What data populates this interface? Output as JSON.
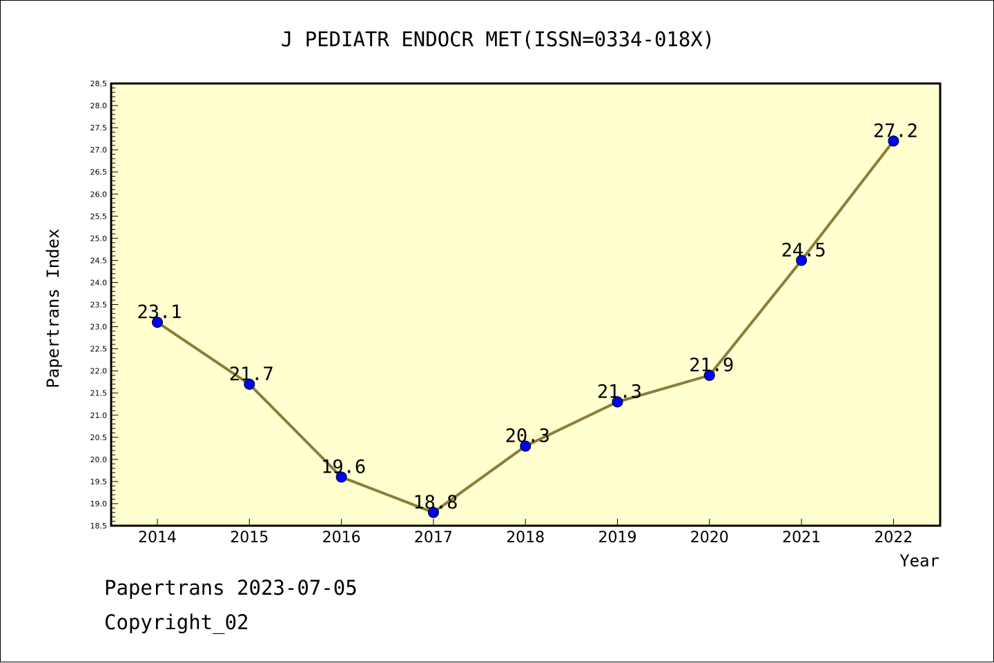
{
  "chart_data": {
    "type": "line",
    "title": "J PEDIATR ENDOCR MET(ISSN=0334-018X)",
    "xlabel": "Year",
    "ylabel": "Papertrans Index",
    "categories": [
      "2014",
      "2015",
      "2016",
      "2017",
      "2018",
      "2019",
      "2020",
      "2021",
      "2022"
    ],
    "values": [
      23.1,
      21.7,
      19.6,
      18.8,
      20.3,
      21.3,
      21.9,
      24.5,
      27.2
    ],
    "data_labels": [
      "23.1",
      "21.7",
      "19.6",
      "18.8",
      "20.3",
      "21.3",
      "21.9",
      "24.5",
      "27.2"
    ],
    "ylim": [
      18.5,
      28.5
    ],
    "ytick_step": 0.5,
    "grid": false,
    "colors": {
      "plot_background": "#ffffd0",
      "line": "#8b7d3a",
      "marker": "#0000ff"
    }
  },
  "footer": {
    "source": "Papertrans 2023-07-05",
    "copyright": "Copyright_02"
  }
}
